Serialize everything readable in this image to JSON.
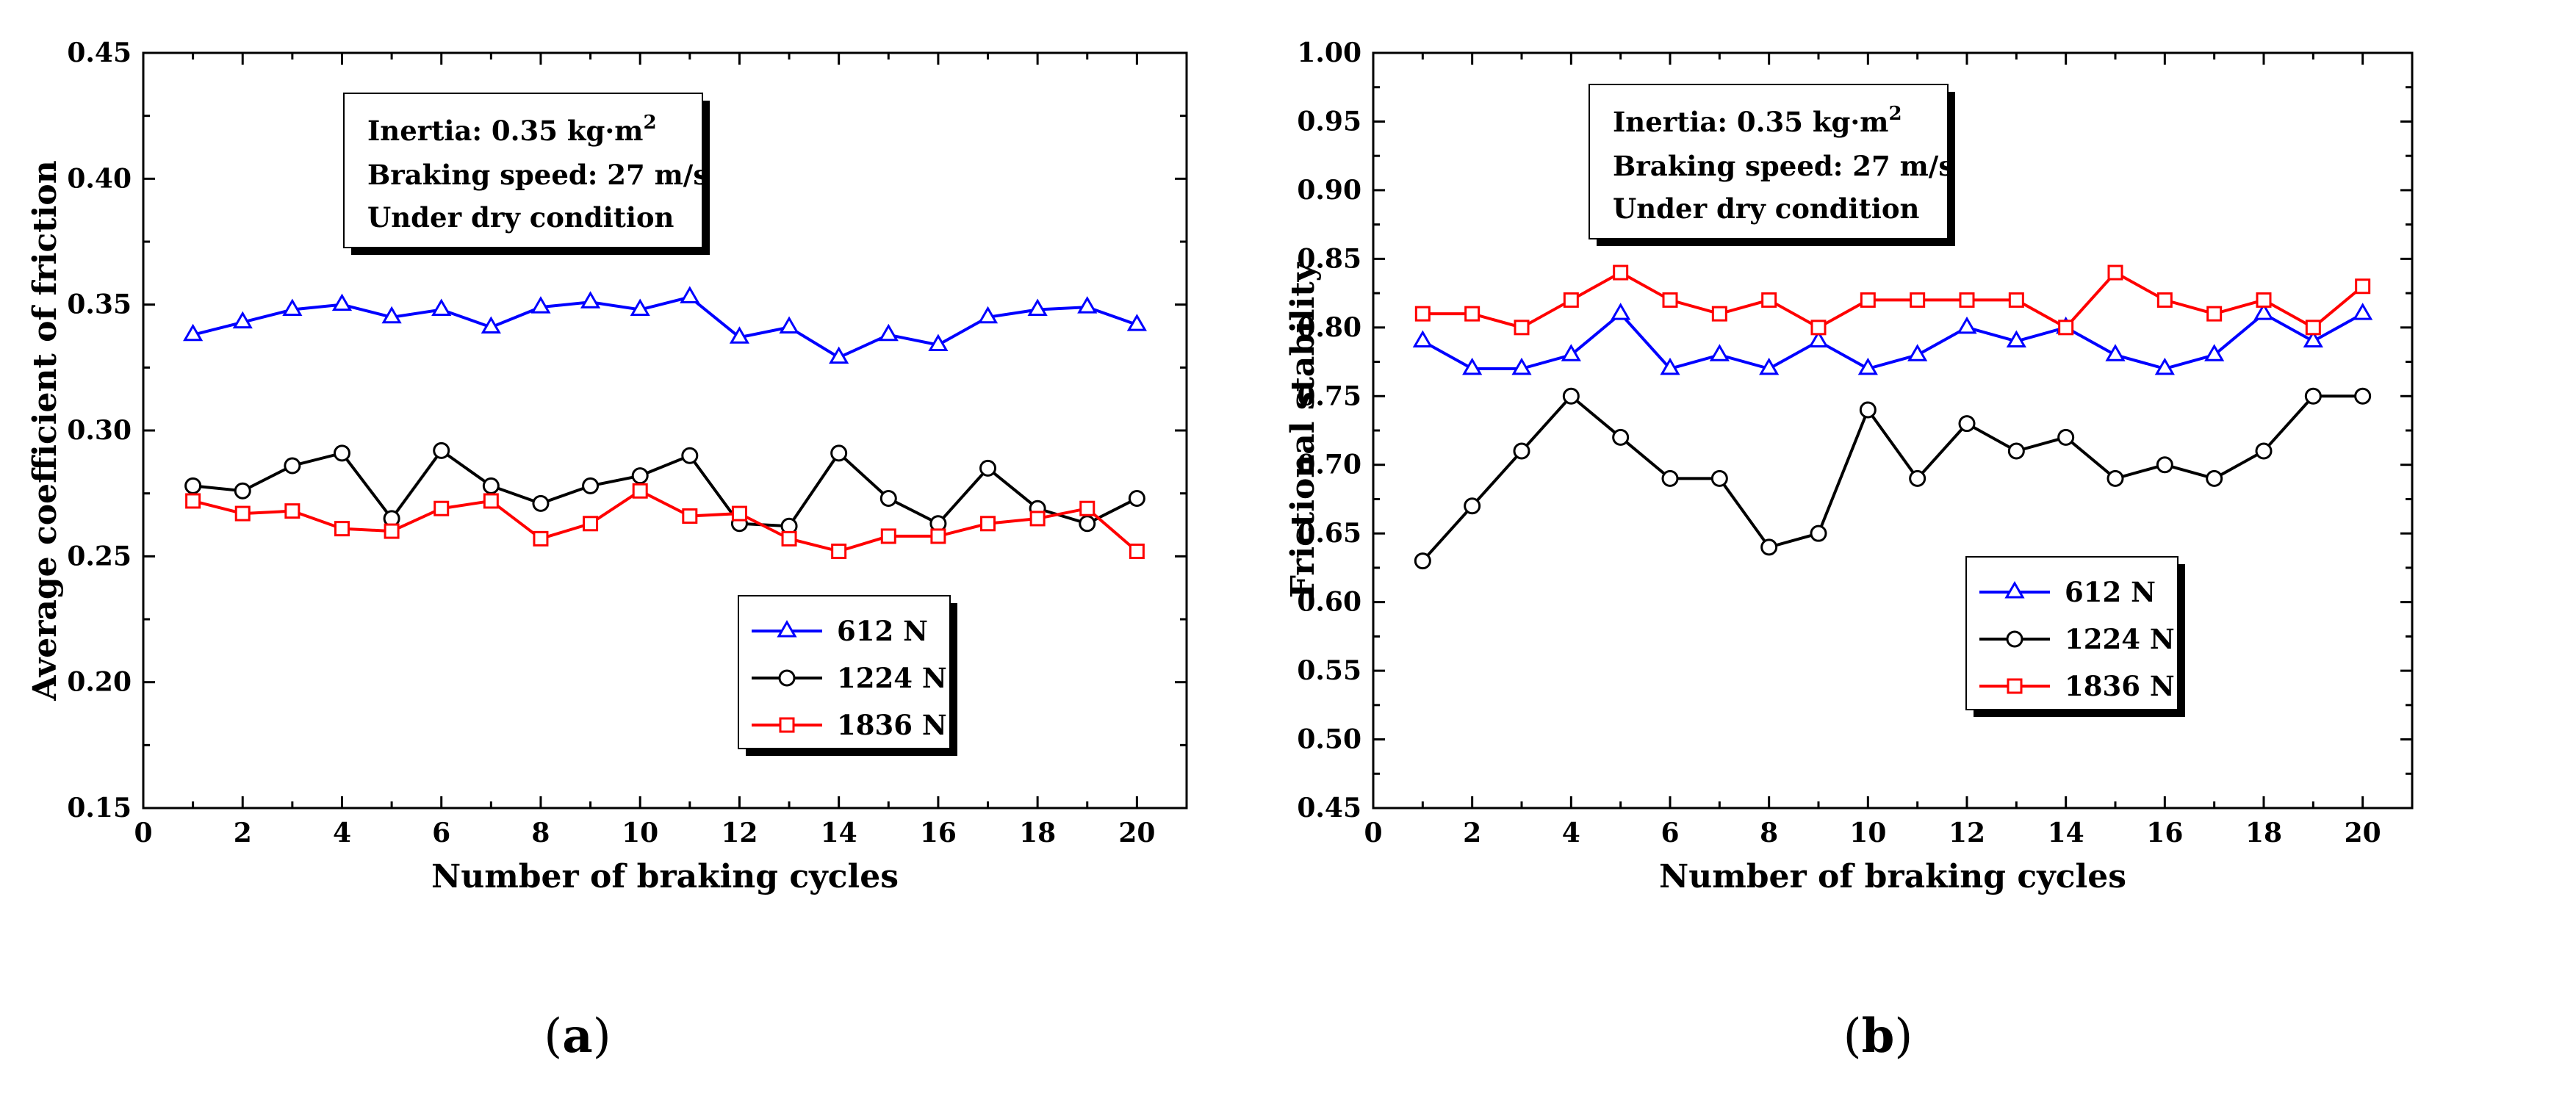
{
  "chart_data": [
    {
      "type": "line",
      "panel_label": "a",
      "xlabel": "Number of braking cycles",
      "ylabel": "Average coefficient of friction",
      "xlim": [
        0,
        21
      ],
      "ylim": [
        0.15,
        0.45
      ],
      "xticks": [
        "0",
        "2",
        "4",
        "6",
        "8",
        "10",
        "12",
        "14",
        "16",
        "18",
        "20"
      ],
      "yticks": [
        "0.15",
        "0.20",
        "0.25",
        "0.30",
        "0.35",
        "0.40",
        "0.45"
      ],
      "info": {
        "line1_prefix": "Inertia: 0.35 kg·m",
        "line1_sup": "2",
        "line2": "Braking speed: 27 m/s",
        "line3": "Under dry condition"
      },
      "x": [
        1,
        2,
        3,
        4,
        5,
        6,
        7,
        8,
        9,
        10,
        11,
        12,
        13,
        14,
        15,
        16,
        17,
        18,
        19,
        20
      ],
      "series": [
        {
          "name": "612 N",
          "color": "#0000ff",
          "marker": "triangle",
          "values": [
            0.338,
            0.343,
            0.348,
            0.35,
            0.345,
            0.348,
            0.341,
            0.349,
            0.351,
            0.348,
            0.353,
            0.337,
            0.341,
            0.329,
            0.338,
            0.334,
            0.345,
            0.348,
            0.349,
            0.342
          ]
        },
        {
          "name": "1224 N",
          "color": "#000000",
          "marker": "circle",
          "values": [
            0.278,
            0.276,
            0.286,
            0.291,
            0.265,
            0.292,
            0.278,
            0.271,
            0.278,
            0.282,
            0.29,
            0.263,
            0.262,
            0.291,
            0.273,
            0.263,
            0.285,
            0.269,
            0.263,
            0.273
          ]
        },
        {
          "name": "1836 N",
          "color": "#ff0000",
          "marker": "square",
          "values": [
            0.272,
            0.267,
            0.268,
            0.261,
            0.26,
            0.269,
            0.272,
            0.257,
            0.263,
            0.276,
            0.266,
            0.267,
            0.257,
            0.252,
            0.258,
            0.258,
            0.263,
            0.265,
            0.269,
            0.252
          ]
        }
      ]
    },
    {
      "type": "line",
      "panel_label": "b",
      "xlabel": "Number of braking cycles",
      "ylabel": "Frictional stability",
      "xlim": [
        0,
        21
      ],
      "ylim": [
        0.45,
        1.0
      ],
      "xticks": [
        "0",
        "2",
        "4",
        "6",
        "8",
        "10",
        "12",
        "14",
        "16",
        "18",
        "20"
      ],
      "yticks": [
        "0.45",
        "0.50",
        "0.55",
        "0.60",
        "0.65",
        "0.70",
        "0.75",
        "0.80",
        "0.85",
        "0.90",
        "0.95",
        "1.00"
      ],
      "info": {
        "line1_prefix": "Inertia: 0.35 kg·m",
        "line1_sup": "2",
        "line2": "Braking speed: 27 m/s",
        "line3": "Under dry condition"
      },
      "x": [
        1,
        2,
        3,
        4,
        5,
        6,
        7,
        8,
        9,
        10,
        11,
        12,
        13,
        14,
        15,
        16,
        17,
        18,
        19,
        20
      ],
      "series": [
        {
          "name": "612 N",
          "color": "#0000ff",
          "marker": "triangle",
          "values": [
            0.79,
            0.77,
            0.77,
            0.78,
            0.81,
            0.77,
            0.78,
            0.77,
            0.79,
            0.77,
            0.78,
            0.8,
            0.79,
            0.8,
            0.78,
            0.77,
            0.78,
            0.81,
            0.79,
            0.81
          ]
        },
        {
          "name": "1224 N",
          "color": "#000000",
          "marker": "circle",
          "values": [
            0.63,
            0.67,
            0.71,
            0.75,
            0.72,
            0.69,
            0.69,
            0.64,
            0.65,
            0.74,
            0.69,
            0.73,
            0.71,
            0.72,
            0.69,
            0.7,
            0.69,
            0.71,
            0.75,
            0.75
          ]
        },
        {
          "name": "1836 N",
          "color": "#ff0000",
          "marker": "square",
          "values": [
            0.81,
            0.81,
            0.8,
            0.82,
            0.84,
            0.82,
            0.81,
            0.82,
            0.8,
            0.82,
            0.82,
            0.82,
            0.82,
            0.8,
            0.84,
            0.82,
            0.81,
            0.82,
            0.8,
            0.83
          ]
        }
      ]
    }
  ],
  "captions": {
    "a": "a",
    "b": "b"
  }
}
